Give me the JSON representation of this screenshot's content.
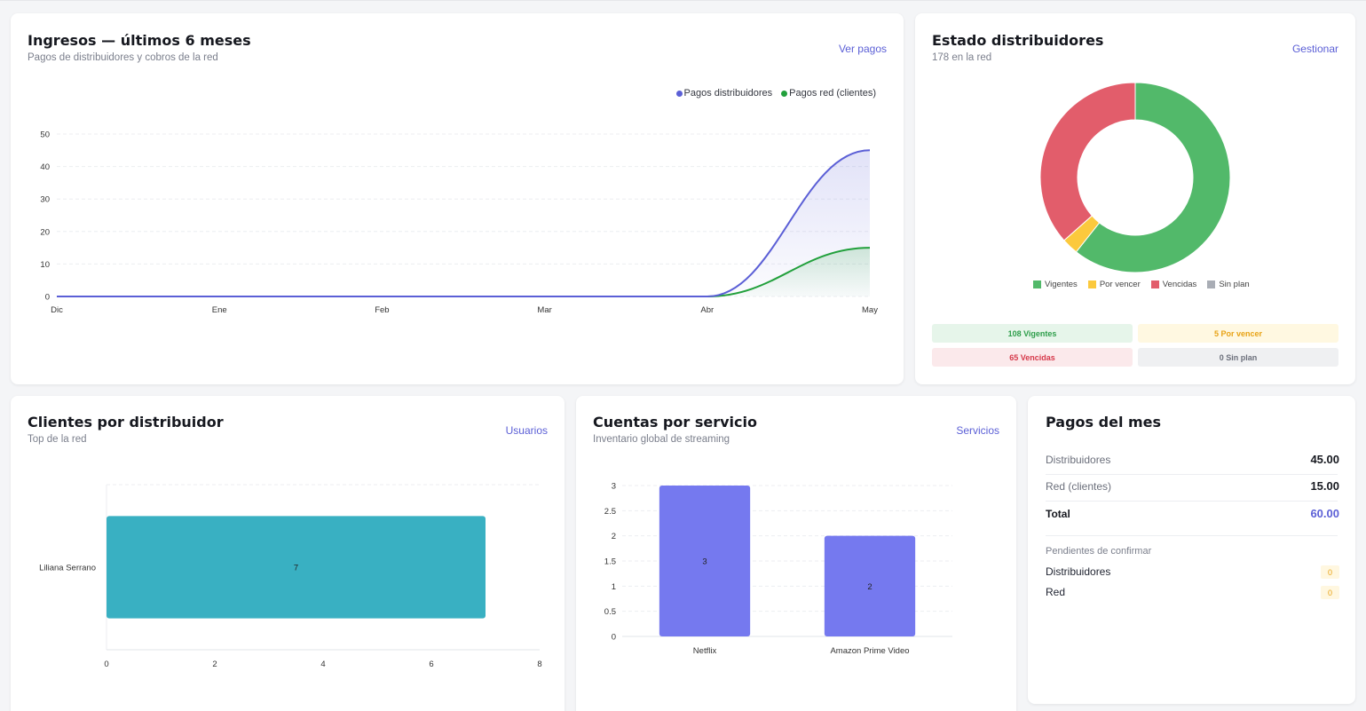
{
  "colors": {
    "accent": "#5b5fd6",
    "line_blue": "#5b5fd6",
    "line_green": "#22a03c",
    "teal": "#39b0c2",
    "bar_purple": "#7579ef",
    "green": "#52b96a",
    "yellow": "#fbc93d",
    "red": "#e25d6b",
    "gray": "#a9adb5"
  },
  "ingresos": {
    "title": "Ingresos — últimos 6 meses",
    "subtitle": "Pagos de distribuidores y cobros de la red",
    "link": "Ver pagos",
    "chart_data": {
      "type": "line",
      "categories": [
        "Dic",
        "Ene",
        "Feb",
        "Mar",
        "Abr",
        "May"
      ],
      "ylim": [
        0,
        50
      ],
      "yticks": [
        "0",
        "10",
        "20",
        "30",
        "40",
        "50"
      ],
      "series": [
        {
          "name": "Pagos distribuidores",
          "values": [
            0,
            0,
            0,
            0,
            0,
            45
          ]
        },
        {
          "name": "Pagos red (clientes)",
          "values": [
            0,
            0,
            0,
            0,
            0,
            15
          ]
        }
      ],
      "legend": "top-right",
      "grid": true
    }
  },
  "estado": {
    "title": "Estado distribuidores",
    "subtitle": "178 en la red",
    "link": "Gestionar",
    "chart_data": {
      "type": "pie",
      "categories": [
        "Vigentes",
        "Por vencer",
        "Vencidas",
        "Sin plan"
      ],
      "values": [
        108,
        5,
        65,
        0
      ],
      "legend": "bottom"
    },
    "badges": [
      "108 Vigentes",
      "5 Por vencer",
      "65 Vencidas",
      "0 Sin plan"
    ]
  },
  "clientes": {
    "title": "Clientes por distribuidor",
    "subtitle": "Top de la red",
    "link": "Usuarios",
    "chart_data": {
      "type": "bar",
      "orientation": "horizontal",
      "categories": [
        "Liliana Serrano"
      ],
      "values": [
        7
      ],
      "xlim": [
        0,
        8
      ],
      "xticks": [
        "0",
        "2",
        "4",
        "6",
        "8"
      ]
    }
  },
  "cuentas": {
    "title": "Cuentas por servicio",
    "subtitle": "Inventario global de streaming",
    "link": "Servicios",
    "chart_data": {
      "type": "bar",
      "categories": [
        "Netflix",
        "Amazon Prime Video"
      ],
      "values": [
        3,
        2
      ],
      "ylim": [
        0,
        3
      ],
      "yticks": [
        "0",
        "0.5",
        "1",
        "1.5",
        "2",
        "2.5",
        "3"
      ]
    }
  },
  "pagos": {
    "title": "Pagos del mes",
    "rows": [
      {
        "label": "Distribuidores",
        "value": "45.00"
      },
      {
        "label": "Red (clientes)",
        "value": "15.00"
      }
    ],
    "total_label": "Total",
    "total_value": "60.00",
    "pending_title": "Pendientes de confirmar",
    "pending": [
      {
        "label": "Distribuidores",
        "value": "0"
      },
      {
        "label": "Red",
        "value": "0"
      }
    ]
  }
}
